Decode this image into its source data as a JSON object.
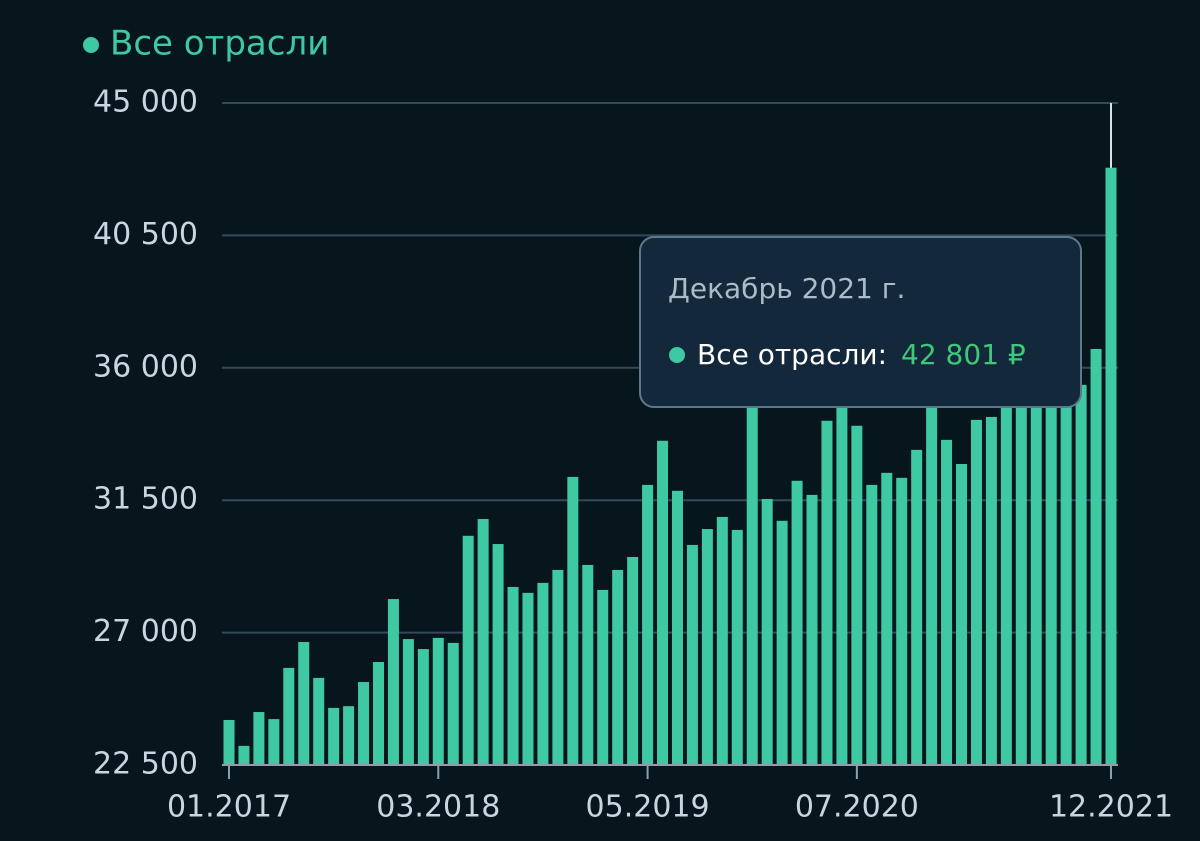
{
  "chart_data": {
    "type": "bar",
    "categories": [
      "01.2017",
      null,
      null,
      null,
      null,
      null,
      null,
      null,
      null,
      null,
      null,
      null,
      null,
      null,
      "03.2018",
      null,
      null,
      null,
      null,
      null,
      null,
      null,
      null,
      null,
      null,
      null,
      null,
      null,
      "05.2019",
      null,
      null,
      null,
      null,
      null,
      null,
      null,
      null,
      null,
      null,
      null,
      null,
      null,
      "07.2020",
      null,
      null,
      null,
      null,
      null,
      null,
      null,
      null,
      null,
      null,
      null,
      null,
      null,
      null,
      null,
      null,
      "12.2021"
    ],
    "series": [
      {
        "name": "Все отрасли",
        "color": "#3ec9a3",
        "values": [
          24030,
          23150,
          24300,
          24060,
          25800,
          26680,
          25460,
          24440,
          24500,
          25320,
          26000,
          28140,
          26780,
          26440,
          26820,
          26650,
          30290,
          30860,
          30010,
          28550,
          28350,
          28690,
          29130,
          32290,
          29300,
          28450,
          29130,
          29570,
          32020,
          33520,
          31820,
          29980,
          30520,
          30930,
          30490,
          35000,
          31540,
          30800,
          32160,
          31680,
          34200,
          34740,
          34030,
          32020,
          32430,
          32260,
          33210,
          34640,
          33550,
          32730,
          34230,
          34330,
          34700,
          34800,
          34800,
          34800,
          34800,
          35420,
          36640,
          42801
        ],
        "value_labels": [
          null,
          null,
          null,
          null,
          null,
          null,
          null,
          null,
          null,
          null,
          null,
          null,
          null,
          null,
          null,
          null,
          null,
          null,
          null,
          null,
          null,
          null,
          null,
          null,
          null,
          null,
          null,
          null,
          null,
          null,
          null,
          null,
          null,
          null,
          null,
          null,
          null,
          null,
          null,
          null,
          null,
          null,
          null,
          null,
          null,
          null,
          null,
          null,
          null,
          null,
          null,
          null,
          null,
          null,
          null,
          null,
          null,
          null,
          null,
          "42 801 ₽"
        ]
      }
    ],
    "ylim": [
      22500,
      45000
    ],
    "yticks": [
      {
        "value": 22500,
        "label": "22 500"
      },
      {
        "value": 27000,
        "label": "27 000"
      },
      {
        "value": 31500,
        "label": "31 500"
      },
      {
        "value": 36000,
        "label": "36 000"
      },
      {
        "value": 40500,
        "label": "40 500"
      },
      {
        "value": 45000,
        "label": "45 000"
      }
    ],
    "grid": true,
    "tooltip": {
      "title": "Декабрь 2021 г.",
      "label": "Все отрасли:"
    }
  }
}
